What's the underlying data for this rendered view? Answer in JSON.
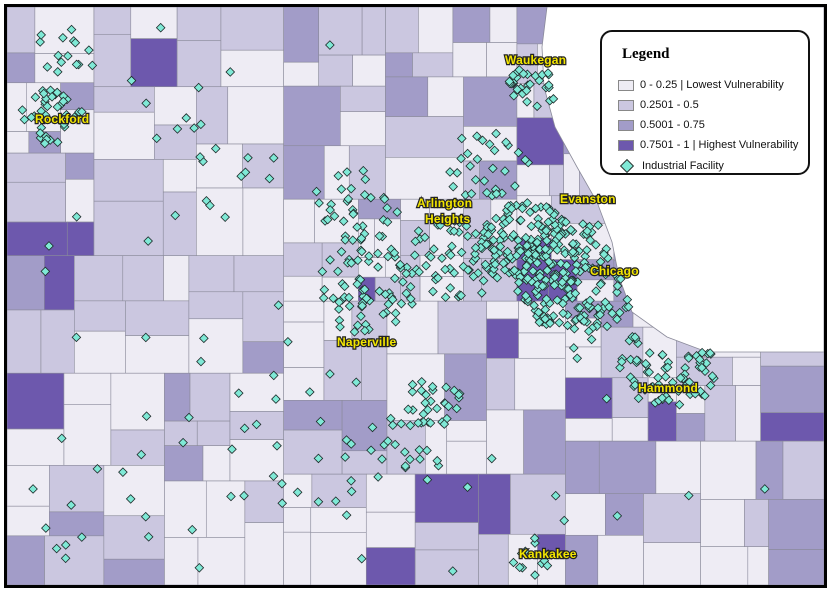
{
  "map": {
    "cities": [
      {
        "name": "Waukegan"
      },
      {
        "name": "Rockford"
      },
      {
        "name": "Arlington"
      },
      {
        "name": "Heights"
      },
      {
        "name": "Evanston"
      },
      {
        "name": "Chicago"
      },
      {
        "name": "Naperville"
      },
      {
        "name": "Hammond"
      },
      {
        "name": "Kankakee"
      }
    ],
    "colors": {
      "class1": "#eeecf4",
      "class2": "#cbc7e0",
      "class3": "#a29cc8",
      "class4": "#6d58ad",
      "boundary": "#8a8a9a",
      "facility": "#7fe9d6",
      "lake": "#ffffff"
    }
  },
  "legend": {
    "title": "Legend",
    "items": [
      {
        "label": "0 - 0.25 | Lowest Vulnerability",
        "color": "#eeecf4"
      },
      {
        "label": "0.2501 - 0.5",
        "color": "#cbc7e0"
      },
      {
        "label": "0.5001 - 0.75",
        "color": "#a29cc8"
      },
      {
        "label": "0.7501 - 1 | Highest Vulnerability",
        "color": "#6d58ad"
      }
    ],
    "facility_label": "Industrial Facility",
    "facility_icon": "diamond-icon"
  }
}
